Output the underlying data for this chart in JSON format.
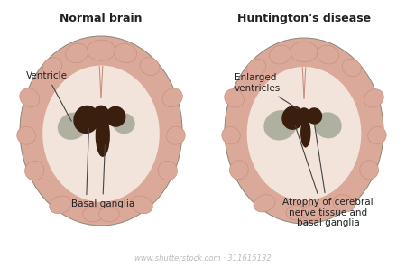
{
  "title_left": "Normal brain",
  "title_right": "Huntington's disease",
  "label_ventricle": "Ventricle",
  "label_basal": "Basal ganglia",
  "label_enlarged": "Enlarged\nventricles",
  "label_atrophy": "Atrophy of cerebral\nnerve tissue and\nbasal ganglia",
  "watermark": "www.shutterstock.com · 311615132",
  "bg_color": "#ffffff",
  "brain_outer_color": "#dba99a",
  "brain_gyri_dark": "#c8907f",
  "brain_inner_color": "#f2e4da",
  "basal_ganglia_color": "#3a1e0e",
  "ventricle_gray_color": "#b0b0a0",
  "outline_color": "#888877",
  "text_color": "#222222",
  "arrow_color": "#444444",
  "title_fontsize": 9,
  "label_fontsize": 7.5,
  "watermark_fontsize": 6
}
